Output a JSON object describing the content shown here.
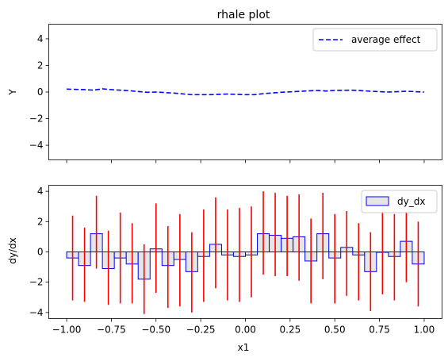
{
  "chart_data": [
    {
      "type": "line",
      "title": "rhale plot",
      "xlabel": "",
      "ylabel": "Y",
      "xlim": [
        -1.1,
        1.1
      ],
      "ylim": [
        -5.1,
        5.1
      ],
      "yticks": [
        -4,
        -2,
        0,
        2,
        4
      ],
      "ytick_labels": [
        "−4",
        "−2",
        "0",
        "2",
        "4"
      ],
      "legend": "top-right",
      "series": [
        {
          "name": "average effect",
          "color": "#0000ff",
          "style": "dashed",
          "x": [
            -1.0,
            -0.9,
            -0.85,
            -0.8,
            -0.75,
            -0.65,
            -0.55,
            -0.5,
            -0.4,
            -0.3,
            -0.2,
            -0.1,
            0.0,
            0.05,
            0.1,
            0.2,
            0.3,
            0.4,
            0.45,
            0.5,
            0.6,
            0.7,
            0.8,
            0.9,
            1.0
          ],
          "y": [
            0.22,
            0.18,
            0.14,
            0.24,
            0.18,
            0.1,
            -0.02,
            0.0,
            -0.08,
            -0.2,
            -0.2,
            -0.15,
            -0.2,
            -0.2,
            -0.12,
            -0.02,
            0.05,
            0.12,
            0.08,
            0.12,
            0.14,
            0.06,
            0.0,
            0.06,
            0.0
          ]
        }
      ]
    },
    {
      "type": "bar",
      "title": "",
      "xlabel": "x1",
      "ylabel": "dy/dx",
      "xlim": [
        -1.1,
        1.1
      ],
      "ylim": [
        -4.4,
        4.4
      ],
      "xticks": [
        -1.0,
        -0.75,
        -0.5,
        -0.25,
        0.0,
        0.25,
        0.5,
        0.75,
        1.0
      ],
      "xtick_labels": [
        "−1.00",
        "−0.75",
        "−0.50",
        "−0.25",
        "0.00",
        "0.25",
        "0.50",
        "0.75",
        "1.00"
      ],
      "yticks": [
        -4,
        -2,
        0,
        2,
        4
      ],
      "ytick_labels": [
        "−4",
        "−2",
        "0",
        "2",
        "4"
      ],
      "legend": "top-right",
      "bar_fill": "#e6e6e6",
      "bar_edge": "#0000ff",
      "error_color": "#ff0000",
      "series": [
        {
          "name": "dy_dx",
          "bin_edges": [
            -1.0,
            -0.9333,
            -0.8667,
            -0.8,
            -0.7333,
            -0.6667,
            -0.6,
            -0.5333,
            -0.4667,
            -0.4,
            -0.3333,
            -0.2667,
            -0.2,
            -0.1333,
            -0.0667,
            0.0,
            0.0667,
            0.1333,
            0.2,
            0.2667,
            0.3333,
            0.4,
            0.4667,
            0.5333,
            0.6,
            0.6667,
            0.7333,
            0.8,
            0.8667,
            0.9333,
            1.0
          ],
          "values": [
            -0.4,
            -0.9,
            1.2,
            -1.1,
            -0.4,
            -0.8,
            -1.8,
            0.2,
            -0.9,
            -0.5,
            -1.3,
            -0.3,
            0.5,
            -0.2,
            -0.3,
            -0.2,
            1.2,
            1.1,
            0.9,
            1.0,
            -0.6,
            1.2,
            -0.4,
            0.3,
            -0.2,
            -1.3,
            0.0,
            -0.3,
            0.7,
            -0.8
          ],
          "err_low": [
            -3.2,
            -3.3,
            -1.1,
            -3.5,
            -3.4,
            -3.4,
            -4.1,
            -2.7,
            -3.7,
            -3.6,
            -4.0,
            -3.3,
            -2.4,
            -3.2,
            -3.3,
            -3.0,
            -1.5,
            -1.6,
            -1.6,
            -1.9,
            -3.4,
            -1.8,
            -3.4,
            -2.9,
            -3.2,
            -3.9,
            -2.8,
            -3.2,
            -2.0,
            -3.6
          ],
          "err_high": [
            2.4,
            1.6,
            3.7,
            1.4,
            2.6,
            1.9,
            0.5,
            3.2,
            1.7,
            2.5,
            1.3,
            2.8,
            3.6,
            2.8,
            2.9,
            3.0,
            4.0,
            3.9,
            3.7,
            3.8,
            2.2,
            3.9,
            2.5,
            2.7,
            1.9,
            1.3,
            2.8,
            2.5,
            3.2,
            2.0
          ]
        }
      ]
    }
  ]
}
